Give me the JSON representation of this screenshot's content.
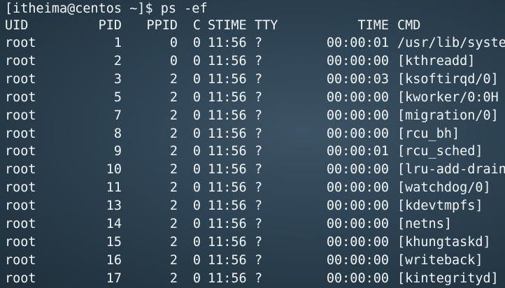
{
  "terminal": {
    "prompt": "[itheima@centos ~]$ ps -ef",
    "headers": [
      "UID",
      "PID",
      "PPID",
      "C",
      "STIME",
      "TTY",
      "TIME",
      "CMD"
    ],
    "rows": [
      [
        "root",
        "1",
        "0",
        "0",
        "11:56",
        "?",
        "00:00:01",
        "/usr/lib/syste"
      ],
      [
        "root",
        "2",
        "0",
        "0",
        "11:56",
        "?",
        "00:00:00",
        "[kthreadd]"
      ],
      [
        "root",
        "3",
        "2",
        "0",
        "11:56",
        "?",
        "00:00:03",
        "[ksoftirqd/0]"
      ],
      [
        "root",
        "5",
        "2",
        "0",
        "11:56",
        "?",
        "00:00:00",
        "[kworker/0:0H"
      ],
      [
        "root",
        "7",
        "2",
        "0",
        "11:56",
        "?",
        "00:00:00",
        "[migration/0]"
      ],
      [
        "root",
        "8",
        "2",
        "0",
        "11:56",
        "?",
        "00:00:00",
        "[rcu_bh]"
      ],
      [
        "root",
        "9",
        "2",
        "0",
        "11:56",
        "?",
        "00:00:01",
        "[rcu_sched]"
      ],
      [
        "root",
        "10",
        "2",
        "0",
        "11:56",
        "?",
        "00:00:00",
        "[lru-add-drain"
      ],
      [
        "root",
        "11",
        "2",
        "0",
        "11:56",
        "?",
        "00:00:00",
        "[watchdog/0]"
      ],
      [
        "root",
        "13",
        "2",
        "0",
        "11:56",
        "?",
        "00:00:00",
        "[kdevtmpfs]"
      ],
      [
        "root",
        "14",
        "2",
        "0",
        "11:56",
        "?",
        "00:00:00",
        "[netns]"
      ],
      [
        "root",
        "15",
        "2",
        "0",
        "11:56",
        "?",
        "00:00:00",
        "[khungtaskd]"
      ],
      [
        "root",
        "16",
        "2",
        "0",
        "11:56",
        "?",
        "00:00:00",
        "[writeback]"
      ],
      [
        "root",
        "17",
        "2",
        "0",
        "11:56",
        "?",
        "00:00:00",
        "[kintegrityd]"
      ]
    ]
  }
}
